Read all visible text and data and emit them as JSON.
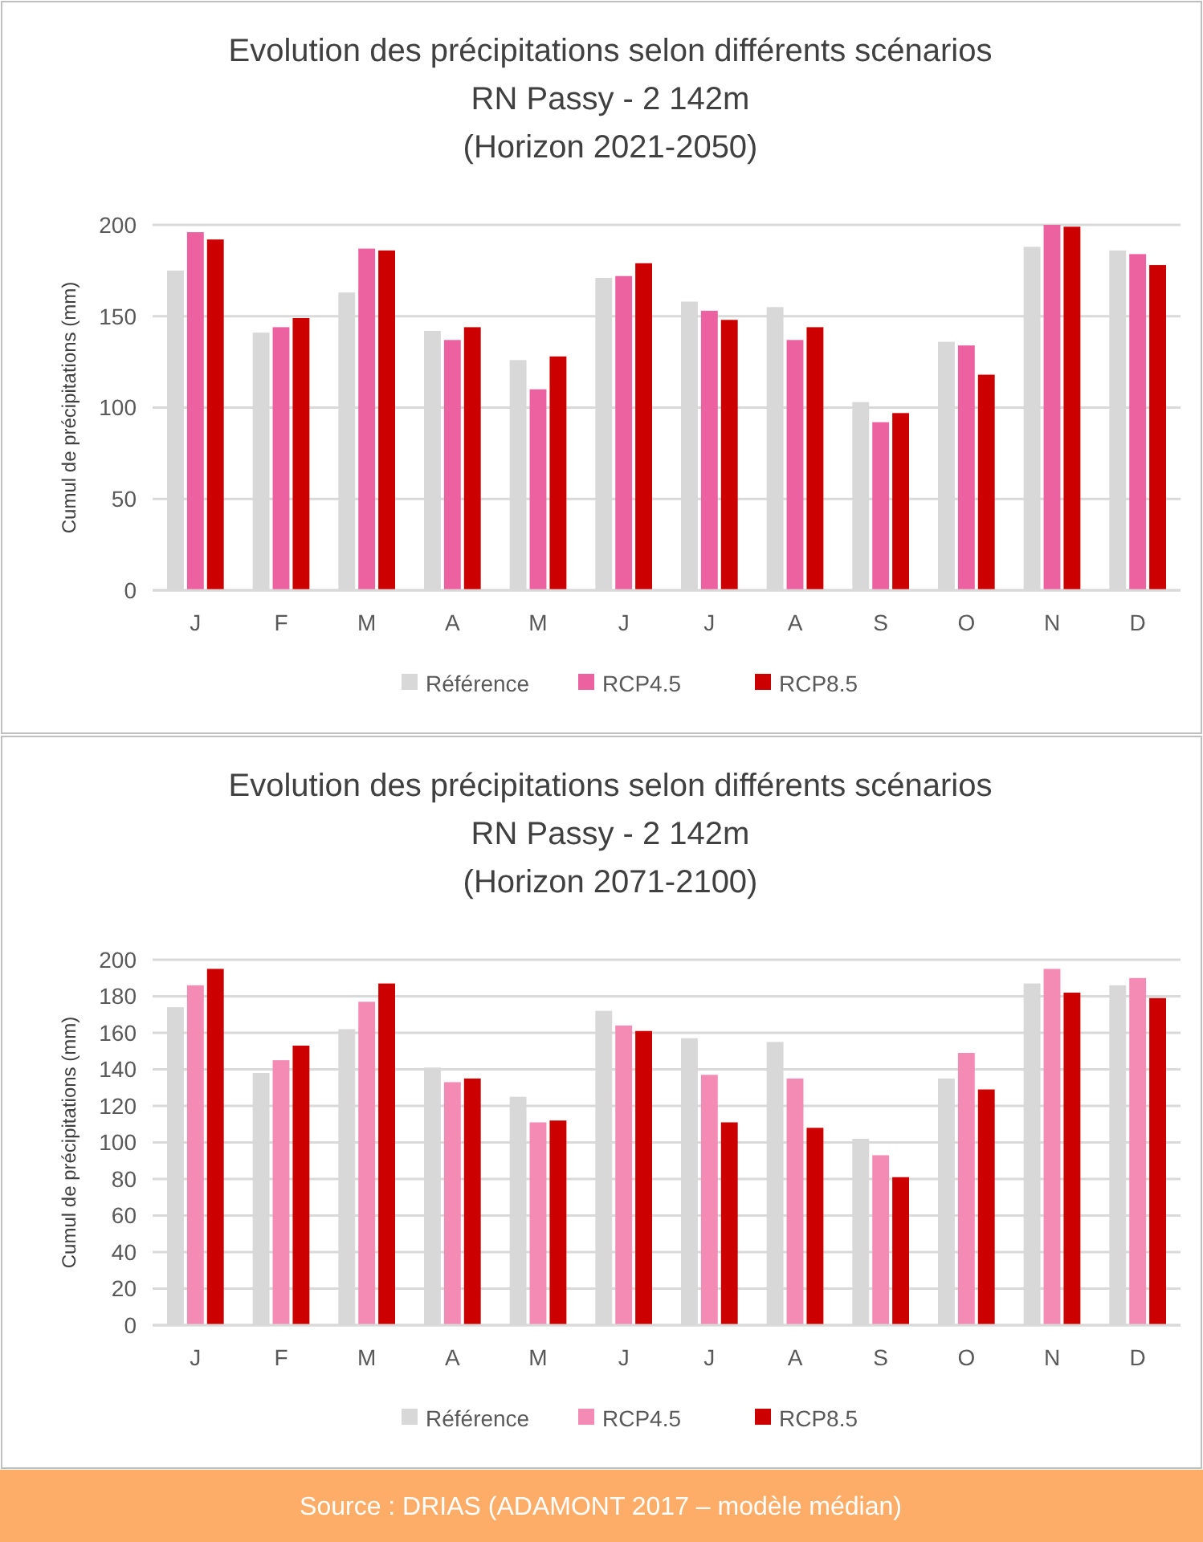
{
  "chart_data": [
    {
      "type": "bar",
      "title": "Evolution des précipitations selon différents scénarios",
      "subtitle": "RN Passy - 2 142m\n(Horizon 2021-2050)",
      "ylabel": "Cumul de précipitations (mm)",
      "categories": [
        "J",
        "F",
        "M",
        "A",
        "M",
        "J",
        "J",
        "A",
        "S",
        "O",
        "N",
        "D"
      ],
      "series": [
        {
          "name": "Référence",
          "color": "#d9d8d8",
          "values": [
            175,
            141,
            163,
            142,
            126,
            171,
            158,
            155,
            103,
            136,
            188,
            186
          ]
        },
        {
          "name": "RCP4.5",
          "color": "#ec619f",
          "values": [
            196,
            144,
            187,
            137,
            110,
            172,
            153,
            137,
            92,
            134,
            200,
            184
          ]
        },
        {
          "name": "RCP8.5",
          "color": "#cc0000",
          "values": [
            192,
            149,
            186,
            144,
            128,
            179,
            148,
            144,
            97,
            118,
            199,
            178
          ]
        }
      ],
      "ylim": [
        0,
        200
      ],
      "yticks": [
        0,
        50,
        100,
        150,
        200
      ],
      "grid": "y",
      "legend": "bottom"
    },
    {
      "type": "bar",
      "title": "Evolution des précipitations selon différents scénarios",
      "subtitle": "RN Passy - 2 142m\n(Horizon 2071-2100)",
      "ylabel": "Cumul de précipitations (mm)",
      "categories": [
        "J",
        "F",
        "M",
        "A",
        "M",
        "J",
        "J",
        "A",
        "S",
        "O",
        "N",
        "D"
      ],
      "series": [
        {
          "name": "Référence",
          "color": "#d9d8d8",
          "values": [
            174,
            138,
            162,
            141,
            125,
            172,
            157,
            155,
            102,
            135,
            187,
            186
          ]
        },
        {
          "name": "RCP4.5",
          "color": "#f48bb5",
          "values": [
            186,
            145,
            177,
            133,
            111,
            164,
            137,
            135,
            93,
            149,
            195,
            190
          ]
        },
        {
          "name": "RCP8.5",
          "color": "#cc0000",
          "values": [
            195,
            153,
            187,
            135,
            112,
            161,
            111,
            108,
            81,
            129,
            182,
            179
          ]
        }
      ],
      "ylim": [
        0,
        200
      ],
      "yticks": [
        0,
        20,
        40,
        60,
        80,
        100,
        120,
        140,
        160,
        180,
        200
      ],
      "grid": "y",
      "legend": "bottom",
      "annotations": [
        "Source : DRIAS (ADAMONT 2017 – modèle médian)"
      ]
    }
  ]
}
